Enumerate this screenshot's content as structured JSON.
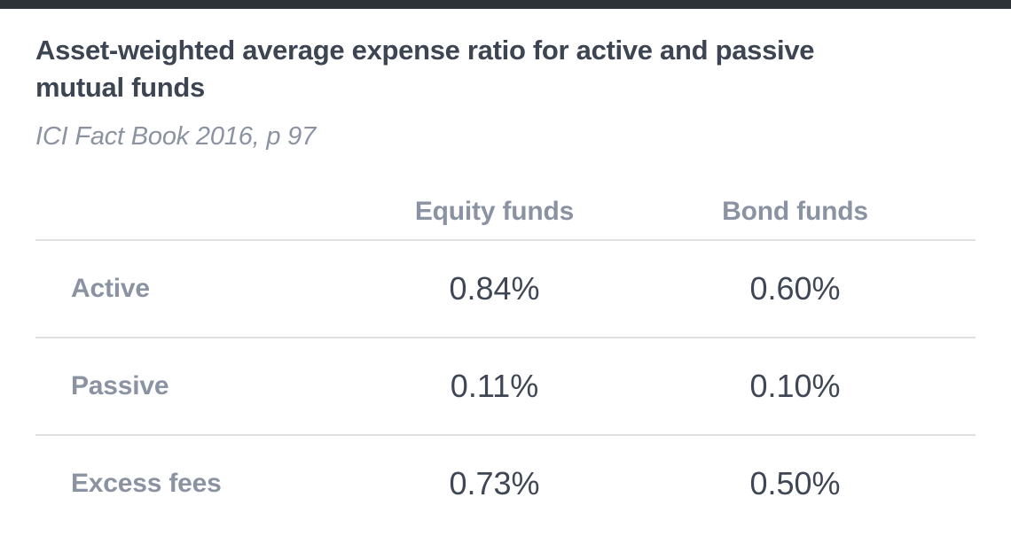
{
  "header": {
    "title": "Asset-weighted average expense ratio for active and passive mutual funds",
    "title_line1": "Asset-weighted average expense ratio for active and passive",
    "title_line2": "mutual funds",
    "source": "ICI Fact Book 2016, p 97"
  },
  "colors": {
    "top_bar": "#2e3338",
    "title_text": "#3d4552",
    "muted_text": "#8b93a2",
    "value_text": "#3f4755",
    "divider": "#e0e0e0",
    "background": "#ffffff"
  },
  "chart_data": {
    "type": "table",
    "title": "Asset-weighted average expense ratio for active and passive mutual funds",
    "subtitle": "ICI Fact Book 2016, p 97",
    "columns": [
      "",
      "Equity funds",
      "Bond funds"
    ],
    "rows": [
      {
        "label": "Active",
        "equity": "0.84%",
        "bond": "0.60%"
      },
      {
        "label": "Passive",
        "equity": "0.11%",
        "bond": "0.10%"
      },
      {
        "label": "Excess fees",
        "equity": "0.73%",
        "bond": "0.50%"
      }
    ]
  }
}
